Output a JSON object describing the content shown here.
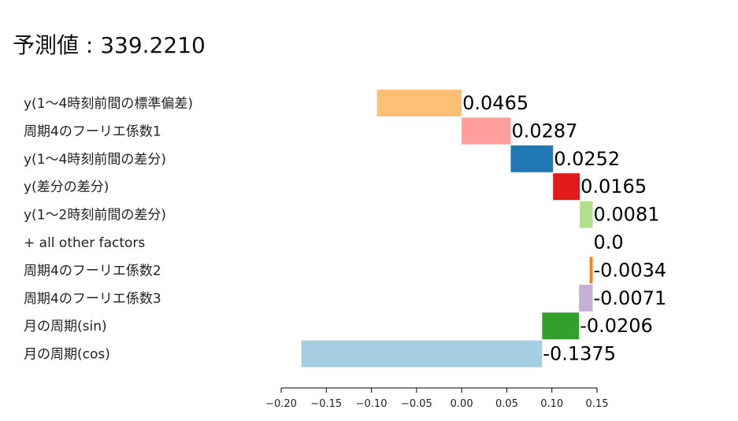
{
  "title": "予測値 : 339.2210",
  "chart_data": {
    "type": "bar",
    "orientation": "horizontal-waterfall",
    "title": "予測値 : 339.2210",
    "xlabel": "",
    "ylabel": "",
    "xlim": [
      -0.2,
      0.15
    ],
    "xticks": [
      -0.2,
      -0.15,
      -0.1,
      -0.05,
      0.0,
      0.05,
      0.1,
      0.15
    ],
    "xtick_labels": [
      "−0.20",
      "−0.15",
      "−0.10",
      "−0.05",
      "0.00",
      "0.05",
      "0.10",
      "0.15"
    ],
    "grid": false,
    "categories": [
      "y(1～4時刻前間の標準偏差)",
      "周期4のフーリエ係数1",
      "y(1～4時刻前間の差分)",
      "y(差分の差分)",
      "y(1～2時刻前間の差分)",
      "+ all other factors",
      "周期4のフーリエ係数2",
      "周期4のフーリエ係数3",
      "月の周期(sin)",
      "月の周期(cos)"
    ],
    "values": [
      0.0465,
      0.0287,
      0.0252,
      0.0165,
      0.0081,
      0.0,
      -0.0034,
      -0.0071,
      -0.0206,
      -0.1375
    ],
    "value_labels": [
      "0.0465",
      "0.0287",
      "0.0252",
      "0.0165",
      "0.0081",
      "0.0",
      "-0.0034",
      "-0.0071",
      "-0.0206",
      "-0.1375"
    ],
    "bar_start": [
      -0.0939,
      0.0,
      0.0544,
      0.1013,
      0.1309,
      0.1452,
      0.1418,
      0.1301,
      0.0892,
      -0.1776
    ],
    "bar_end": [
      0.0,
      0.0544,
      0.1013,
      0.1309,
      0.1452,
      0.1452,
      0.1452,
      0.1452,
      0.1301,
      0.0892
    ],
    "colors": [
      "#ffbf75",
      "#ff9e9a",
      "#1f77b4",
      "#e31a1c",
      "#b2df8a",
      "#ffffff",
      "#ff7f0e",
      "#c5b0d5",
      "#33a02c",
      "#a6cee3"
    ]
  }
}
